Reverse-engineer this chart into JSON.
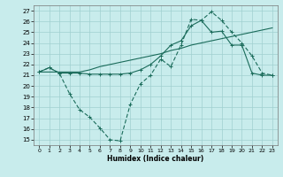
{
  "xlabel": "Humidex (Indice chaleur)",
  "xlim": [
    -0.5,
    23.5
  ],
  "ylim": [
    14.5,
    27.5
  ],
  "yticks": [
    15,
    16,
    17,
    18,
    19,
    20,
    21,
    22,
    23,
    24,
    25,
    26,
    27
  ],
  "xticks": [
    0,
    1,
    2,
    3,
    4,
    5,
    6,
    7,
    8,
    9,
    10,
    11,
    12,
    13,
    14,
    15,
    16,
    17,
    18,
    19,
    20,
    21,
    22,
    23
  ],
  "bg_color": "#c8ecec",
  "line_color": "#1a6b5a",
  "grid_color": "#a0d0d0",
  "s1_x": [
    0,
    1,
    2,
    3,
    4,
    5,
    6,
    7,
    8,
    9,
    10,
    11,
    12,
    13,
    14,
    15,
    16,
    17,
    18,
    19,
    20,
    21,
    22,
    23
  ],
  "s1_y": [
    21.3,
    21.7,
    21.2,
    21.2,
    21.2,
    21.1,
    21.1,
    21.1,
    21.1,
    21.2,
    21.5,
    22.0,
    22.8,
    23.8,
    24.2,
    25.6,
    26.1,
    25.0,
    25.1,
    23.8,
    23.8,
    21.2,
    21.0,
    21.0
  ],
  "s2_x": [
    0,
    1,
    2,
    3,
    4,
    5,
    6,
    7,
    8,
    9,
    10,
    11,
    12,
    13,
    14,
    15,
    16,
    17,
    18,
    19,
    20,
    21,
    22,
    23
  ],
  "s2_y": [
    21.3,
    21.3,
    21.3,
    21.3,
    21.3,
    21.5,
    21.8,
    22.0,
    22.2,
    22.4,
    22.6,
    22.8,
    23.0,
    23.3,
    23.5,
    23.8,
    24.0,
    24.2,
    24.4,
    24.6,
    24.8,
    25.0,
    25.2,
    25.4
  ],
  "s3_x": [
    0,
    1,
    2,
    3,
    4,
    5,
    6,
    7,
    8,
    9,
    10,
    11,
    12,
    13,
    14,
    15,
    16,
    17,
    18,
    19,
    20,
    21,
    22,
    23
  ],
  "s3_y": [
    21.3,
    21.7,
    21.2,
    19.3,
    17.8,
    17.1,
    16.1,
    15.0,
    14.9,
    18.3,
    20.2,
    21.0,
    22.5,
    21.8,
    23.8,
    26.2,
    26.1,
    26.9,
    26.1,
    25.0,
    24.0,
    22.8,
    21.2,
    21.0
  ]
}
